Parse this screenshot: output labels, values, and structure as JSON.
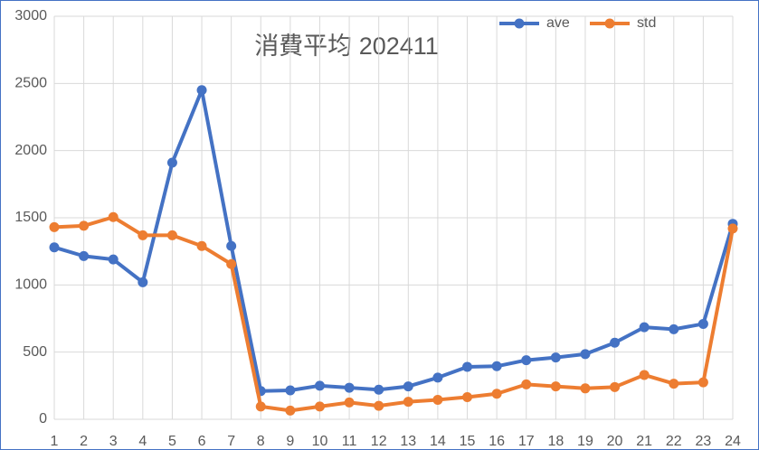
{
  "chart_data": {
    "type": "line",
    "title": "消費平均 202411",
    "categories": [
      "1",
      "2",
      "3",
      "4",
      "5",
      "6",
      "7",
      "8",
      "9",
      "10",
      "11",
      "12",
      "13",
      "14",
      "15",
      "16",
      "17",
      "18",
      "19",
      "20",
      "21",
      "22",
      "23",
      "24"
    ],
    "series": [
      {
        "name": "ave",
        "color": "#4472c4",
        "values": [
          1280,
          1215,
          1190,
          1020,
          1910,
          2450,
          1290,
          210,
          215,
          250,
          235,
          220,
          245,
          310,
          390,
          395,
          440,
          460,
          485,
          570,
          685,
          670,
          710,
          1455
        ]
      },
      {
        "name": "std",
        "color": "#ed7d31",
        "values": [
          1430,
          1440,
          1505,
          1370,
          1370,
          1290,
          1155,
          95,
          65,
          95,
          125,
          100,
          130,
          145,
          165,
          190,
          260,
          245,
          230,
          240,
          330,
          265,
          275,
          1420
        ]
      }
    ],
    "ylim": [
      0,
      3000
    ],
    "yticks": [
      0,
      500,
      1000,
      1500,
      2000,
      2500,
      3000
    ],
    "grid": true,
    "legend": "top-right"
  }
}
